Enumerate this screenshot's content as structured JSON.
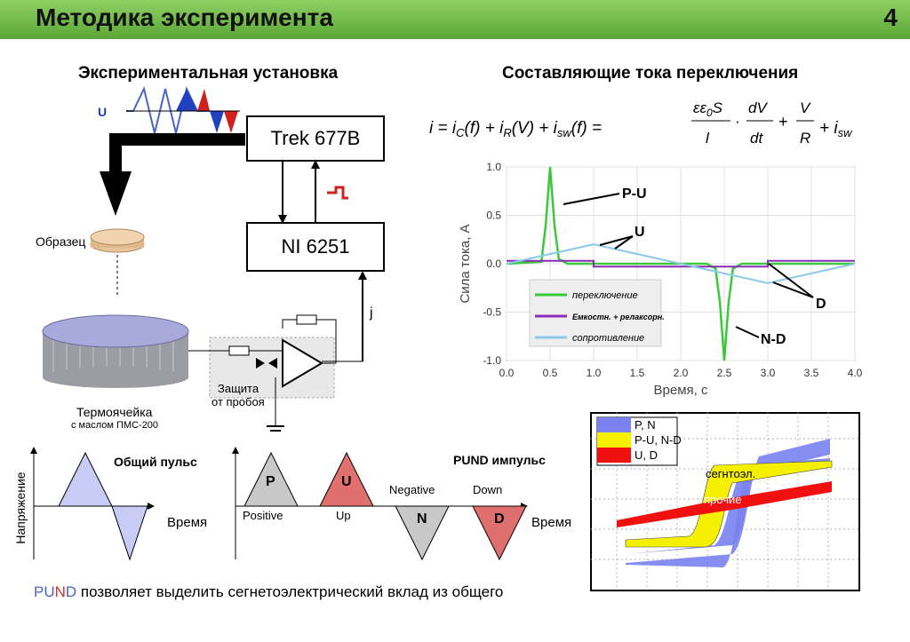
{
  "header": {
    "title": "Методика эксперимента",
    "page_number": "4"
  },
  "left": {
    "title": "Экспериментальная установка",
    "u_label": "U",
    "trek_label": "Trek 677B",
    "ni_label": "NI 6251",
    "sample_label": "Образец",
    "j_label": "j",
    "protection_label_1": "Защита",
    "protection_label_2": "от пробоя",
    "cell_label": "Термоячейка",
    "cell_sublabel": "с маслом ПМС-200"
  },
  "right": {
    "title": "Составляющие тока переключения"
  },
  "chart_data": {
    "type": "line",
    "ylabel": "Сила тока, А",
    "xlabel": "Время, с",
    "xlim": [
      0.0,
      4.0
    ],
    "ylim": [
      -1.0,
      1.0
    ],
    "x_ticks": [
      "0.0",
      "0.5",
      "1.0",
      "1.5",
      "2.0",
      "2.5",
      "3.0",
      "3.5",
      "4.0"
    ],
    "y_ticks": [
      "1.0",
      "0.5",
      "0.0",
      "-0.5",
      "-1.0"
    ],
    "series": [
      {
        "name": "переключение",
        "color": "#3cc83c",
        "x": [
          0.0,
          0.4,
          0.45,
          0.5,
          0.55,
          0.6,
          0.7,
          1.0,
          2.3,
          2.4,
          2.45,
          2.5,
          2.55,
          2.6,
          2.7,
          4.0
        ],
        "y": [
          0.0,
          0.02,
          0.4,
          1.0,
          0.4,
          0.05,
          0.0,
          0.0,
          0.0,
          -0.05,
          -0.4,
          -1.0,
          -0.4,
          -0.05,
          0.0,
          0.0
        ]
      },
      {
        "name": "Емкостн. + релаксорн.",
        "color": "#8a2bb8",
        "x": [
          0.0,
          1.0,
          1.0,
          3.0,
          3.0,
          4.0
        ],
        "y": [
          0.03,
          0.03,
          -0.03,
          -0.03,
          0.03,
          0.03
        ]
      },
      {
        "name": "сопротивление",
        "color": "#8cc8e8",
        "x": [
          0.0,
          1.0,
          2.0,
          3.0,
          4.0
        ],
        "y": [
          0.0,
          0.2,
          0.0,
          -0.2,
          0.0
        ]
      }
    ],
    "annotations": [
      "P-U",
      "U",
      "D",
      "N-D"
    ]
  },
  "pulses": {
    "general_title": "Общий пульс",
    "ylabel": "Напряжение",
    "xlabel": "Время",
    "pund_title": "PUND импульс",
    "xlabel2": "Время",
    "p": "P",
    "u": "U",
    "n": "N",
    "d": "D",
    "positive": "Positive",
    "up": "Up",
    "negative": "Negative",
    "down": "Down"
  },
  "loop": {
    "legend": [
      "P, N",
      "P-U, N-D",
      "U, D"
    ],
    "labels": [
      "общий",
      "сегнтоэл.",
      "прочие"
    ]
  },
  "footer": {
    "p1": "PU",
    "p2": "N",
    "p3": "D",
    "rest": " позволяет выделить сегнетоэлектрический вклад из общего"
  }
}
